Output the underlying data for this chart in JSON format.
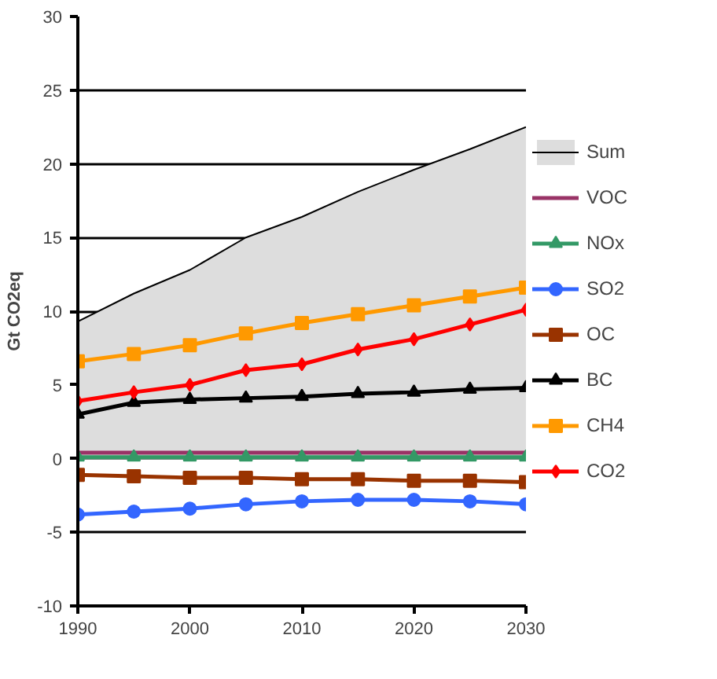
{
  "chart_data": {
    "type": "line",
    "ylabel": "Gt CO2eq",
    "x": [
      1990,
      1995,
      2000,
      2005,
      2010,
      2015,
      2020,
      2025,
      2030
    ],
    "xlim": [
      1990,
      2030
    ],
    "xticks": [
      1990,
      2000,
      2010,
      2020,
      2030
    ],
    "ylim": [
      -10,
      30
    ],
    "yticks": [
      -10,
      -5,
      0,
      5,
      10,
      15,
      20,
      25,
      30
    ],
    "grid": "y",
    "legend": "right",
    "series": [
      {
        "name": "Sum",
        "type": "area",
        "color": "#dddddd",
        "marker": "none",
        "values": [
          9.3,
          11.2,
          12.8,
          15.0,
          16.4,
          18.1,
          19.6,
          21.0,
          22.5
        ]
      },
      {
        "name": "VOC",
        "color": "#993366",
        "marker": "none",
        "values": [
          0.4,
          0.4,
          0.4,
          0.4,
          0.4,
          0.4,
          0.4,
          0.4,
          0.4
        ]
      },
      {
        "name": "NOx",
        "color": "#339966",
        "marker": "triangle",
        "values": [
          0.1,
          0.1,
          0.1,
          0.1,
          0.1,
          0.1,
          0.1,
          0.1,
          0.1
        ]
      },
      {
        "name": "SO2",
        "color": "#3366ff",
        "marker": "circle",
        "values": [
          -3.8,
          -3.6,
          -3.4,
          -3.1,
          -2.9,
          -2.8,
          -2.8,
          -2.9,
          -3.1
        ]
      },
      {
        "name": "OC",
        "color": "#993300",
        "marker": "square",
        "values": [
          -1.1,
          -1.2,
          -1.3,
          -1.3,
          -1.4,
          -1.4,
          -1.5,
          -1.5,
          -1.6
        ]
      },
      {
        "name": "BC",
        "color": "#000000",
        "marker": "triangle",
        "values": [
          3.0,
          3.8,
          4.0,
          4.1,
          4.2,
          4.4,
          4.5,
          4.7,
          4.8
        ]
      },
      {
        "name": "CH4",
        "color": "#ff9900",
        "marker": "square",
        "values": [
          6.6,
          7.1,
          7.7,
          8.5,
          9.2,
          9.8,
          10.4,
          11.0,
          11.6
        ]
      },
      {
        "name": "CO2",
        "color": "#ff0000",
        "marker": "diamond",
        "values": [
          3.9,
          4.5,
          5.0,
          6.0,
          6.4,
          7.4,
          8.1,
          9.1,
          10.1
        ]
      }
    ]
  }
}
